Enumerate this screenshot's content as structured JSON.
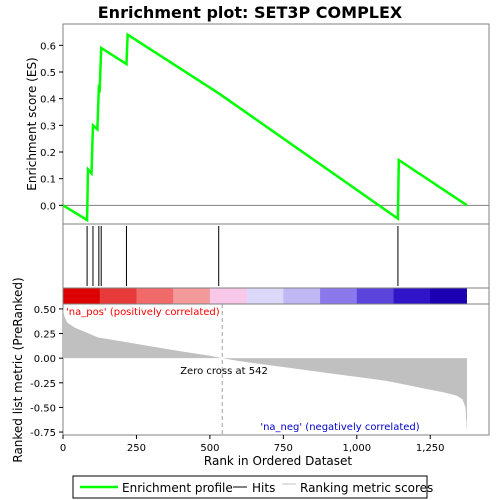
{
  "chart_data": {
    "type": "line",
    "title": "Enrichment plot: SET3P COMPLEX",
    "xlabel": "Rank in Ordered Dataset",
    "top_panel": {
      "ylabel": "Enrichment score (ES)",
      "ylim": [
        -0.07,
        0.68
      ],
      "yticks": [
        "0.0",
        "0.1",
        "0.2",
        "0.3",
        "0.4",
        "0.5",
        "0.6"
      ],
      "ytick_values": [
        0.0,
        0.1,
        0.2,
        0.3,
        0.4,
        0.5,
        0.6
      ],
      "series_color": "#00ff00",
      "es_profile": {
        "x": [
          0,
          82,
          85,
          97,
          102,
          117,
          122,
          125,
          130,
          216,
          220,
          530,
          1140,
          1143,
          1375
        ],
        "y": [
          0.0,
          -0.055,
          0.135,
          0.12,
          0.3,
          0.285,
          0.44,
          0.435,
          0.59,
          0.53,
          0.64,
          0.42,
          -0.05,
          0.17,
          0.0
        ]
      }
    },
    "hits": [
      82,
      102,
      122,
      130,
      216,
      530,
      1140
    ],
    "heatmap_colors": [
      "#dd0000",
      "#e83a3a",
      "#f06a6a",
      "#f59a9a",
      "#f8c8e8",
      "#dcd8f8",
      "#c0b8f4",
      "#8a78ec",
      "#5a44dc",
      "#3014c8",
      "#1a00b0"
    ],
    "bottom_panel": {
      "ylabel": "Ranked list metric (PreRanked)",
      "ylim": [
        -0.78,
        0.55
      ],
      "yticks": [
        "0.50",
        "0.25",
        "0.00",
        "-0.25",
        "-0.50",
        "-0.75"
      ],
      "ytick_values": [
        0.5,
        0.25,
        0.0,
        -0.25,
        -0.5,
        -0.75
      ],
      "metric_profile": {
        "x": [
          0,
          5,
          15,
          40,
          80,
          120,
          200,
          300,
          400,
          500,
          542,
          600,
          700,
          800,
          900,
          1000,
          1100,
          1150,
          1200,
          1250,
          1300,
          1340,
          1360,
          1370,
          1375
        ],
        "y": [
          0.5,
          0.42,
          0.36,
          0.31,
          0.26,
          0.21,
          0.17,
          0.12,
          0.07,
          0.025,
          0.0,
          -0.03,
          -0.07,
          -0.11,
          -0.15,
          -0.19,
          -0.23,
          -0.26,
          -0.29,
          -0.32,
          -0.35,
          -0.38,
          -0.42,
          -0.5,
          -0.75
        ]
      },
      "pos_label": "'na_pos' (positively correlated)",
      "neg_label": "'na_neg' (negatively correlated)",
      "zero_cross_label": "Zero cross at 542",
      "zero_cross": 542
    },
    "xlim": [
      0,
      1450
    ],
    "xticks": [
      "0",
      "250",
      "500",
      "750",
      "1,000",
      "1,250"
    ],
    "xtick_values": [
      0,
      250,
      500,
      750,
      1000,
      1250
    ]
  },
  "legend": {
    "items": [
      {
        "label": "Enrichment profile",
        "color": "#00ff00"
      },
      {
        "label": "Hits",
        "color": "#000000"
      },
      {
        "label": "Ranking metric scores",
        "color": "#c0c0c0"
      }
    ]
  }
}
